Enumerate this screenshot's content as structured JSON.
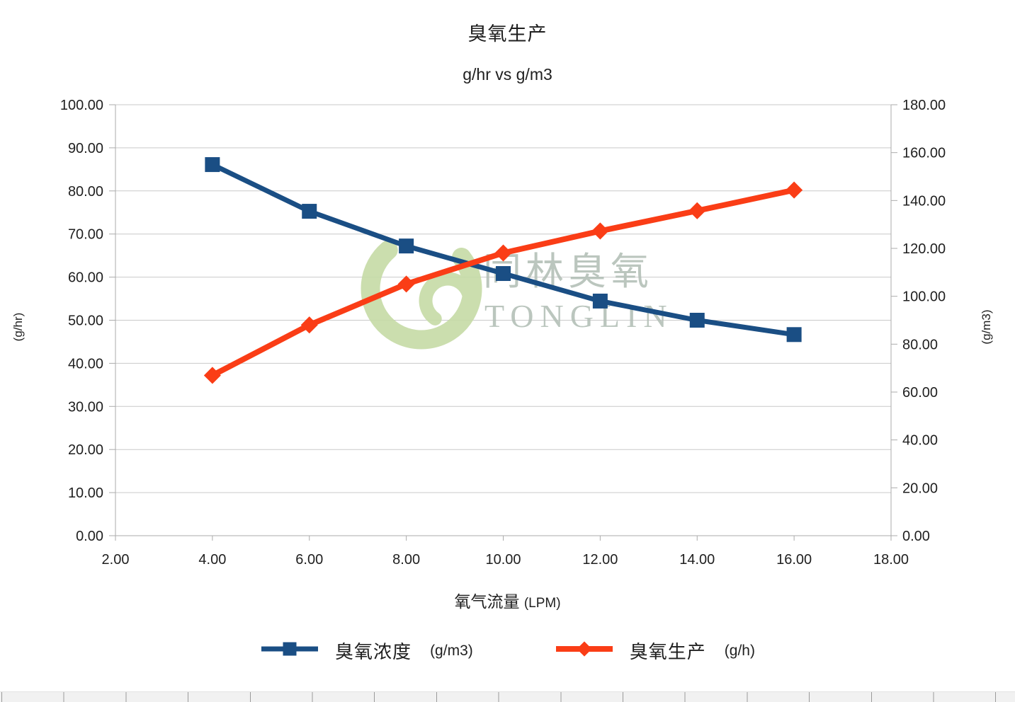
{
  "colors": {
    "background": "#ffffff",
    "text": "#1f1f1f",
    "gridline": "#c9c9c9",
    "axis_line": "#ababab",
    "series_concentration": "#1a4e84",
    "series_production": "#fa3d16",
    "watermark_logo": "#c6dba6",
    "watermark_text": "#b4c0b8",
    "ruler_bg": "#f1f1f1",
    "ruler_tick": "#9a9a9a"
  },
  "chart_data": {
    "type": "line",
    "title": "臭氧生产",
    "subtitle": "g/hr vs g/m3",
    "xlabel": "氧气流量",
    "xlabel_unit": "(LPM)",
    "ylabel_left": "(g/hr)",
    "ylabel_right": "(g/m3)",
    "xlim": [
      2,
      18
    ],
    "ylim_left": [
      0,
      100
    ],
    "ylim_right": [
      0,
      180
    ],
    "x_ticks": [
      "2.00",
      "4.00",
      "6.00",
      "8.00",
      "10.00",
      "12.00",
      "14.00",
      "16.00",
      "18.00"
    ],
    "y_ticks_left": [
      "0.00",
      "10.00",
      "20.00",
      "30.00",
      "40.00",
      "50.00",
      "60.00",
      "70.00",
      "80.00",
      "90.00",
      "100.00"
    ],
    "y_ticks_right": [
      "0.00",
      "20.00",
      "40.00",
      "60.00",
      "80.00",
      "100.00",
      "120.00",
      "140.00",
      "160.00",
      "180.00"
    ],
    "grid": true,
    "legend_position": "bottom",
    "x": [
      4,
      6,
      8,
      10,
      12,
      14,
      16
    ],
    "series": [
      {
        "name": "臭氧浓度",
        "unit": "(g/m3)",
        "axis": "right",
        "marker": "square",
        "color": "#1a4e84",
        "values": [
          155,
          135.5,
          121,
          109.5,
          98,
          90,
          84
        ]
      },
      {
        "name": "臭氧生产",
        "unit": "(g/h)",
        "axis": "left",
        "marker": "diamond",
        "color": "#fa3d16",
        "values": [
          37.2,
          48.9,
          58.4,
          65.6,
          70.7,
          75.4,
          80.2
        ]
      }
    ],
    "watermark": {
      "cjk": "同林臭氧",
      "latin": "TONGLIN"
    }
  }
}
